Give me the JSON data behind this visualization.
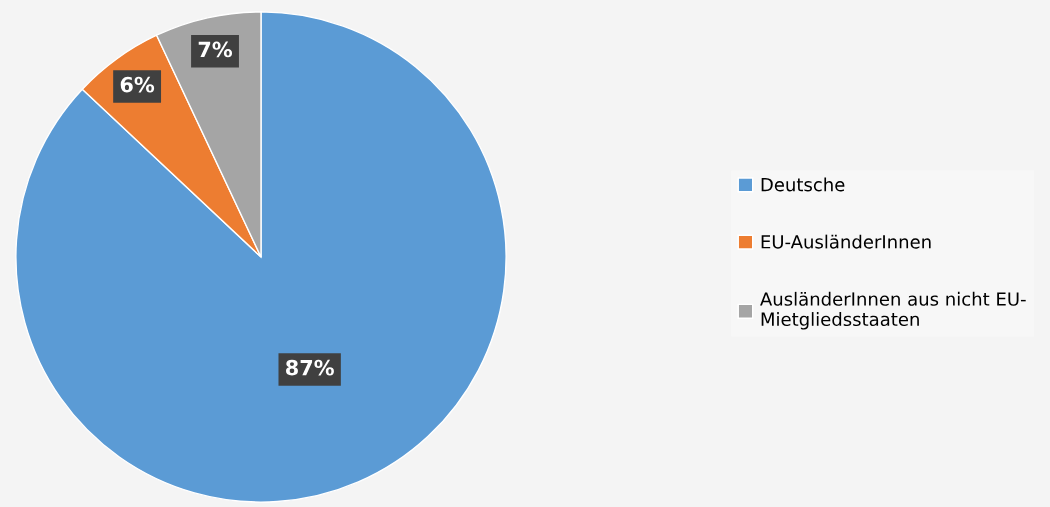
{
  "chart_data": {
    "type": "pie",
    "categories": [
      "Deutsche",
      "EU-AusländerInnen",
      "AusländerInnen aus nicht EU-\nMietgliedsstaaten"
    ],
    "values": [
      87,
      6,
      7
    ],
    "colors": [
      "#5b9bd5",
      "#ed7d31",
      "#a5a5a5"
    ],
    "value_labels": [
      "87%",
      "6%",
      "7%"
    ],
    "legend": "right"
  }
}
